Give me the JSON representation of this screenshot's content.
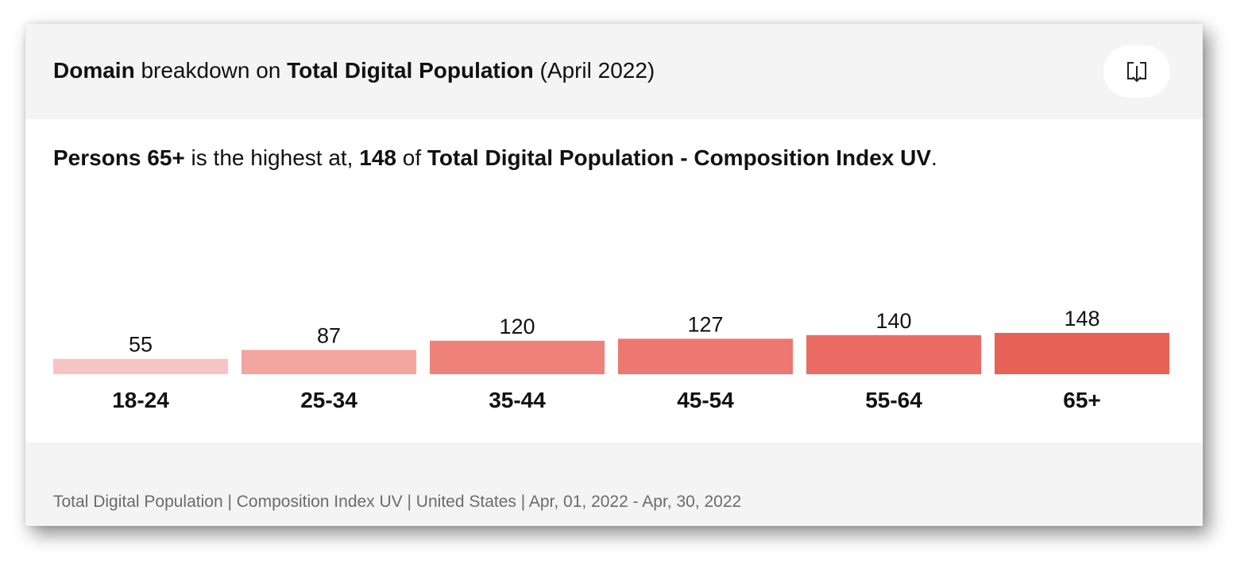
{
  "header": {
    "title_part1": "Domain",
    "title_part2": " breakdown on ",
    "title_part3": "Total Digital Population",
    "title_part4": " (April 2022)",
    "download_icon": "download-icon"
  },
  "insight": {
    "part1": "Persons 65+",
    "part2": " is the highest at, ",
    "part3": "148",
    "part4": " of ",
    "part5": "Total Digital Population - Composition Index UV",
    "part6": "."
  },
  "footer": {
    "text": "Total Digital Population | Composition Index UV | United States | Apr, 01, 2022 - Apr, 30, 2022"
  },
  "chart_data": {
    "type": "bar",
    "categories": [
      "18-24",
      "25-34",
      "35-44",
      "45-54",
      "55-64",
      "65+"
    ],
    "values": [
      55,
      87,
      120,
      127,
      140,
      148
    ],
    "colors": [
      "#f7c4c1",
      "#f3a59f",
      "#ee8179",
      "#ec7871",
      "#ea6c64",
      "#e86157"
    ],
    "ylim": [
      0,
      148
    ],
    "grid": false,
    "legend": "none"
  }
}
